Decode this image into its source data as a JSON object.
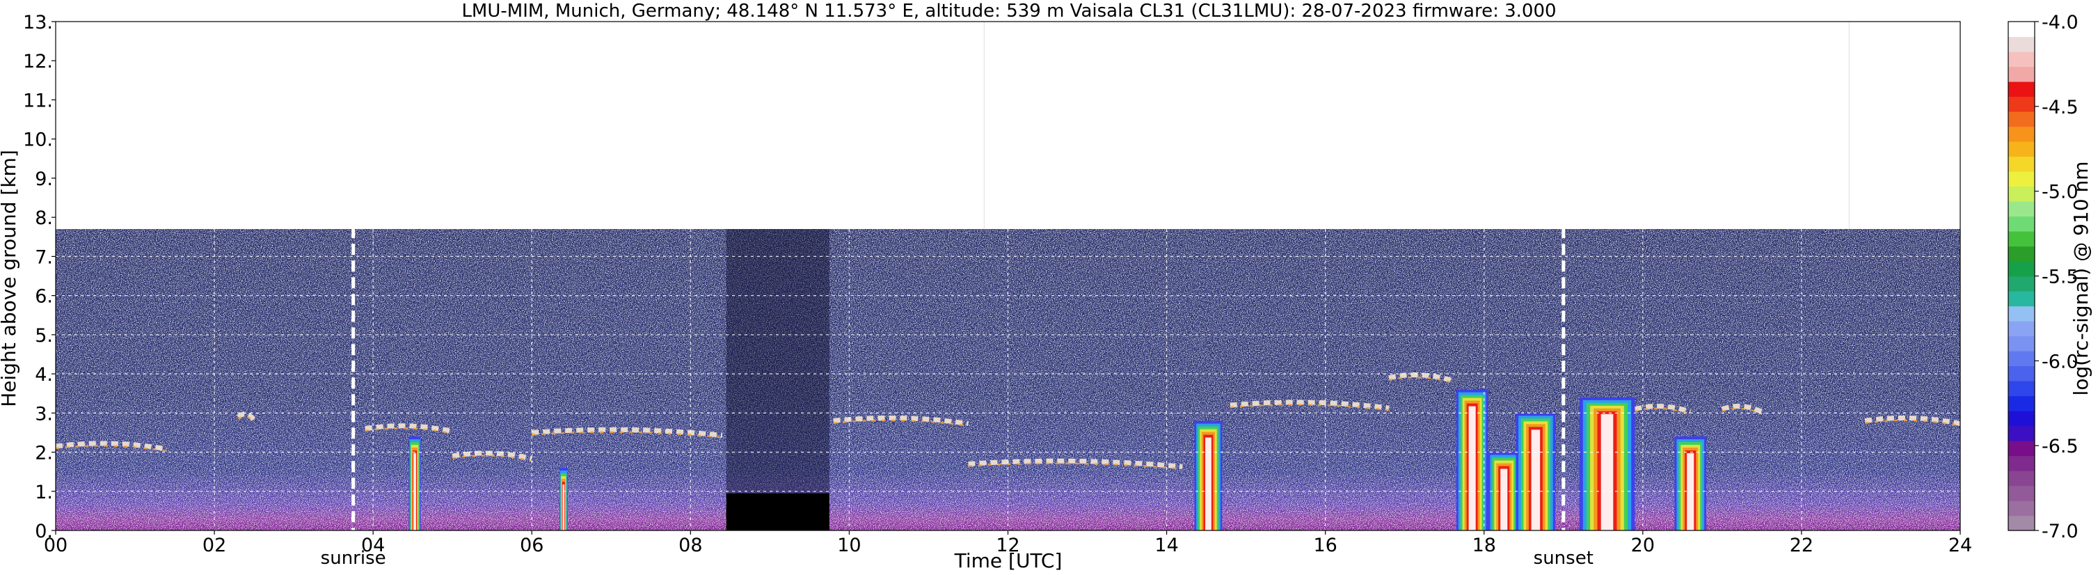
{
  "chart_data": {
    "type": "heatmap",
    "title": "LMU-MIM, Munich, Germany; 48.148° N 11.573° E, altitude: 539 m    Vaisala CL31 (CL31LMU): 28-07-2023    firmware: 3.000",
    "xlabel": "Time [UTC]",
    "ylabel": "Height above ground [km]",
    "xlim": [
      0,
      24
    ],
    "ylim": [
      0,
      13
    ],
    "x_ticks": [
      0,
      2,
      4,
      6,
      8,
      10,
      12,
      14,
      16,
      18,
      20,
      22,
      24
    ],
    "x_tick_labels": [
      "00",
      "02",
      "04",
      "06",
      "08",
      "10",
      "12",
      "14",
      "16",
      "18",
      "20",
      "22",
      "24"
    ],
    "y_ticks": [
      0,
      1,
      2,
      3,
      4,
      5,
      6,
      7,
      8,
      9,
      10,
      11,
      12,
      13
    ],
    "y_tick_labels": [
      "0.",
      "1.",
      "2.",
      "3.",
      "4.",
      "5.",
      "6.",
      "7.",
      "8.",
      "9.",
      "10.",
      "11.",
      "12.",
      "13."
    ],
    "grid": true,
    "data_top_km": 7.7,
    "missing_data": [
      {
        "start": 8.45,
        "end": 9.75,
        "top_km": 0.95
      }
    ],
    "sun_events": [
      {
        "label": "sunrise",
        "time": 3.75
      },
      {
        "label": "sunset",
        "time": 19.0
      }
    ],
    "aerosol_layers": [
      {
        "start": 0.0,
        "end": 1.4,
        "height": 2.15
      },
      {
        "start": 2.3,
        "end": 2.5,
        "height": 2.9
      },
      {
        "start": 3.9,
        "end": 5.0,
        "height": 2.6
      },
      {
        "start": 5.0,
        "end": 6.0,
        "height": 1.9
      },
      {
        "start": 6.0,
        "end": 8.4,
        "height": 2.5
      },
      {
        "start": 9.8,
        "end": 11.5,
        "height": 2.8
      },
      {
        "start": 11.5,
        "end": 14.2,
        "height": 1.7
      },
      {
        "start": 14.8,
        "end": 16.8,
        "height": 3.2
      },
      {
        "start": 16.8,
        "end": 17.6,
        "height": 3.9
      },
      {
        "start": 19.9,
        "end": 20.6,
        "height": 3.1
      },
      {
        "start": 21.0,
        "end": 21.5,
        "height": 3.1
      },
      {
        "start": 22.8,
        "end": 24.0,
        "height": 2.8
      }
    ],
    "cloud_columns": [
      {
        "start": 4.45,
        "end": 4.6,
        "top_km": 2.4
      },
      {
        "start": 6.35,
        "end": 6.45,
        "top_km": 1.6
      },
      {
        "start": 14.35,
        "end": 14.7,
        "top_km": 2.8
      },
      {
        "start": 17.65,
        "end": 18.05,
        "top_km": 3.6
      },
      {
        "start": 18.05,
        "end": 18.45,
        "top_km": 2.0
      },
      {
        "start": 18.4,
        "end": 18.9,
        "top_km": 3.0
      },
      {
        "start": 19.2,
        "end": 19.9,
        "top_km": 3.4
      },
      {
        "start": 20.4,
        "end": 20.8,
        "top_km": 2.4
      }
    ],
    "colorbar": {
      "label": "log(rc-signal) @ 910 nm",
      "min": -7.0,
      "max": -4.0,
      "ticks": [
        -7.0,
        -6.5,
        -6.0,
        -5.5,
        -5.0,
        -4.5,
        -4.0
      ],
      "tick_labels": [
        "-7.0",
        "-6.5",
        "-6.0",
        "-5.5",
        "-5.0",
        "-4.5",
        "-4.0"
      ],
      "colors": [
        "#a38aa6",
        "#9b6fa0",
        "#925a98",
        "#8a4592",
        "#7f2b8d",
        "#780e8a",
        "#3c0fc2",
        "#1f10d8",
        "#1a2ae4",
        "#2e46ea",
        "#4a62ec",
        "#6079ef",
        "#7a92f1",
        "#8aa4f3",
        "#95c0f4",
        "#28b8a0",
        "#21a86e",
        "#16a04a",
        "#2a9e28",
        "#45c23c",
        "#6edb74",
        "#9be88c",
        "#c9ef5a",
        "#eef040",
        "#f4d728",
        "#f6b41a",
        "#f7931a",
        "#f36c1d",
        "#ee3a18",
        "#ea1212",
        "#f1a8a6",
        "#f6c0be",
        "#ebdcdb",
        "#ffffff"
      ]
    }
  }
}
